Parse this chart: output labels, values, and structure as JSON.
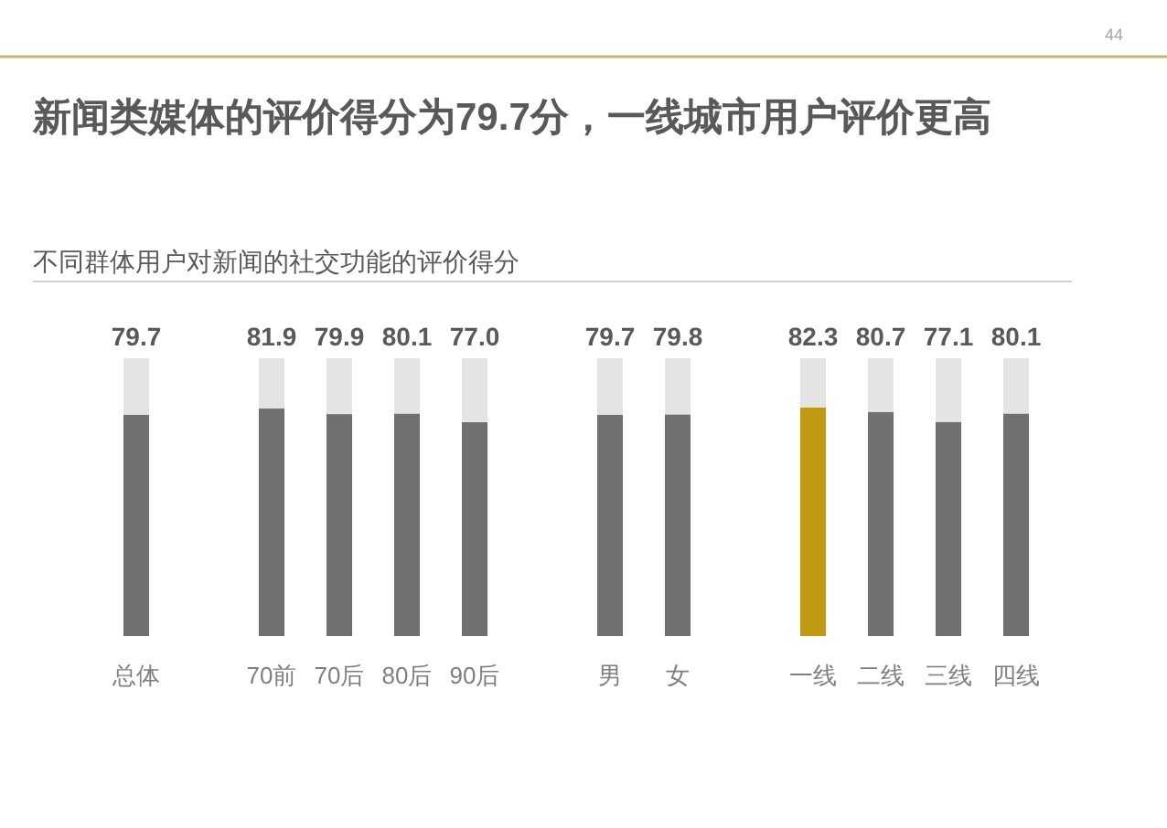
{
  "chart_data": {
    "type": "bar",
    "title": "新闻类媒体的评价得分为79.7分，一线城市用户评价更高",
    "subtitle": "不同群体用户对新闻的社交功能的评价得分",
    "categories": [
      "总体",
      null,
      "70前",
      "70后",
      "80后",
      "90后",
      null,
      "男",
      "女",
      null,
      "一线",
      "二线",
      "三线",
      "四线"
    ],
    "stacked": true,
    "ylim": [
      0,
      100
    ],
    "tick_labels": "x",
    "series": [
      {
        "colors": [
          "#707070",
          null,
          "#707070",
          "#707070",
          "#707070",
          "#707070",
          null,
          "#707070",
          "#707070",
          null,
          "#c09a10",
          "#707070",
          "#707070",
          "#707070"
        ],
        "values": [
          79.7,
          null,
          81.9,
          79.9,
          80.1,
          77.0,
          null,
          79.7,
          79.8,
          null,
          82.3,
          80.7,
          77.1,
          80.1
        ],
        "value_labels": [
          "79.7",
          null,
          "81.9",
          "79.9",
          "80.1",
          "77.0",
          null,
          "79.7",
          "79.8",
          null,
          "82.3",
          "80.7",
          "77.1",
          "80.1"
        ]
      },
      {
        "color": "#e4e4e4",
        "values": [
          20.3,
          null,
          18.1,
          20.1,
          19.9,
          23.0,
          null,
          20.3,
          20.2,
          null,
          17.7,
          19.3,
          22.9,
          19.9
        ]
      }
    ],
    "annotations": [
      "44"
    ]
  }
}
